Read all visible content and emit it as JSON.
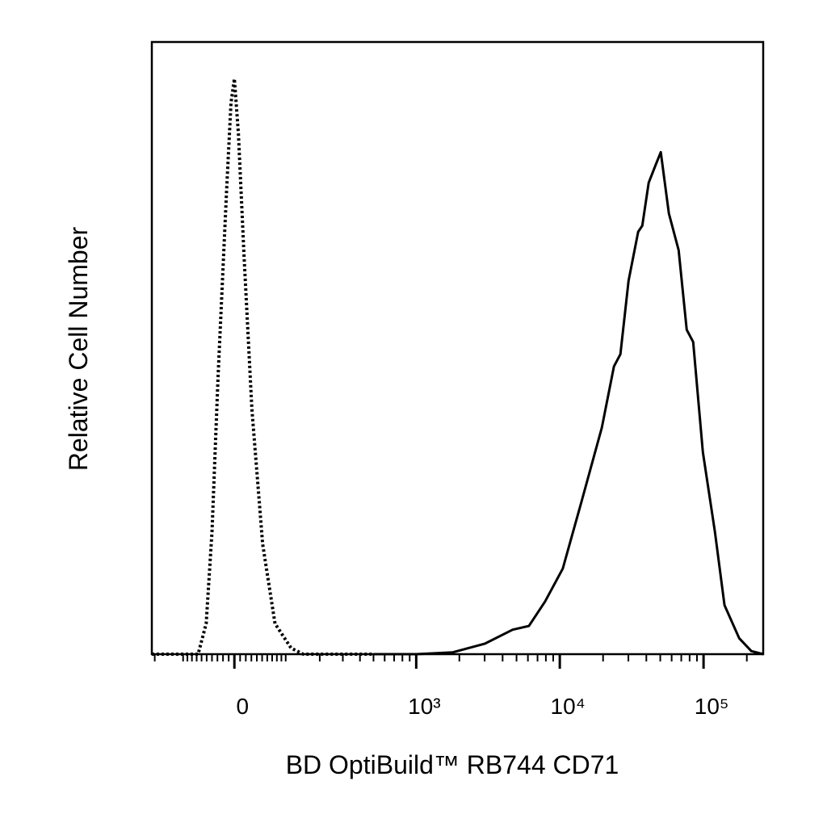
{
  "chart_data": {
    "type": "line",
    "xlabel": "BD OptiBuild™ RB744 CD71",
    "ylabel": "Relative Cell Number",
    "x_scale": {
      "type": "arcsinh",
      "cofactor": 109
    },
    "xlim": [
      -190,
      260000
    ],
    "ylim": [
      0,
      100
    ],
    "xticks": [
      0,
      {
        "value": 1000,
        "label": "10³"
      },
      {
        "value": 10000,
        "label": "10⁴"
      },
      {
        "value": 100000,
        "label": "10⁵"
      }
    ],
    "minor_xticks": [
      -180,
      -100,
      -90,
      -80,
      -70,
      -60,
      -50,
      -40,
      -30,
      -20,
      -10,
      10,
      20,
      30,
      40,
      50,
      60,
      70,
      80,
      90,
      100,
      200,
      300,
      400,
      500,
      600,
      700,
      800,
      900,
      2000,
      3000,
      4000,
      5000,
      6000,
      7000,
      8000,
      9000,
      20000,
      30000,
      40000,
      50000,
      60000,
      70000,
      80000,
      90000,
      200000
    ],
    "series": [
      {
        "color": "#000000",
        "style": "dotted",
        "x": [
          -190,
          -67,
          -51,
          -40,
          -29,
          -14,
          -6,
          0,
          7,
          17,
          31,
          51,
          76,
          113,
          146,
          500
        ],
        "values": [
          0,
          0,
          5,
          20,
          45,
          75,
          90,
          94,
          85,
          65,
          40,
          18,
          5,
          1,
          0,
          0
        ]
      },
      {
        "color": "#000000",
        "style": "solid",
        "x": [
          500,
          1000,
          1800,
          3000,
          4700,
          6100,
          7900,
          10500,
          14200,
          19600,
          23800,
          26400,
          30100,
          35100,
          37500,
          41500,
          46600,
          50400,
          53100,
          57400,
          67100,
          76400,
          84700,
          98900,
          120000,
          140000,
          177000,
          215000,
          260000
        ],
        "values": [
          0,
          0,
          0.3,
          1.7,
          4,
          4.6,
          8.6,
          14,
          25,
          37,
          47,
          49,
          61,
          69,
          70,
          77,
          80,
          82,
          78,
          72,
          66,
          53,
          51,
          33,
          20,
          8,
          2.6,
          0.5,
          0
        ]
      }
    ]
  }
}
